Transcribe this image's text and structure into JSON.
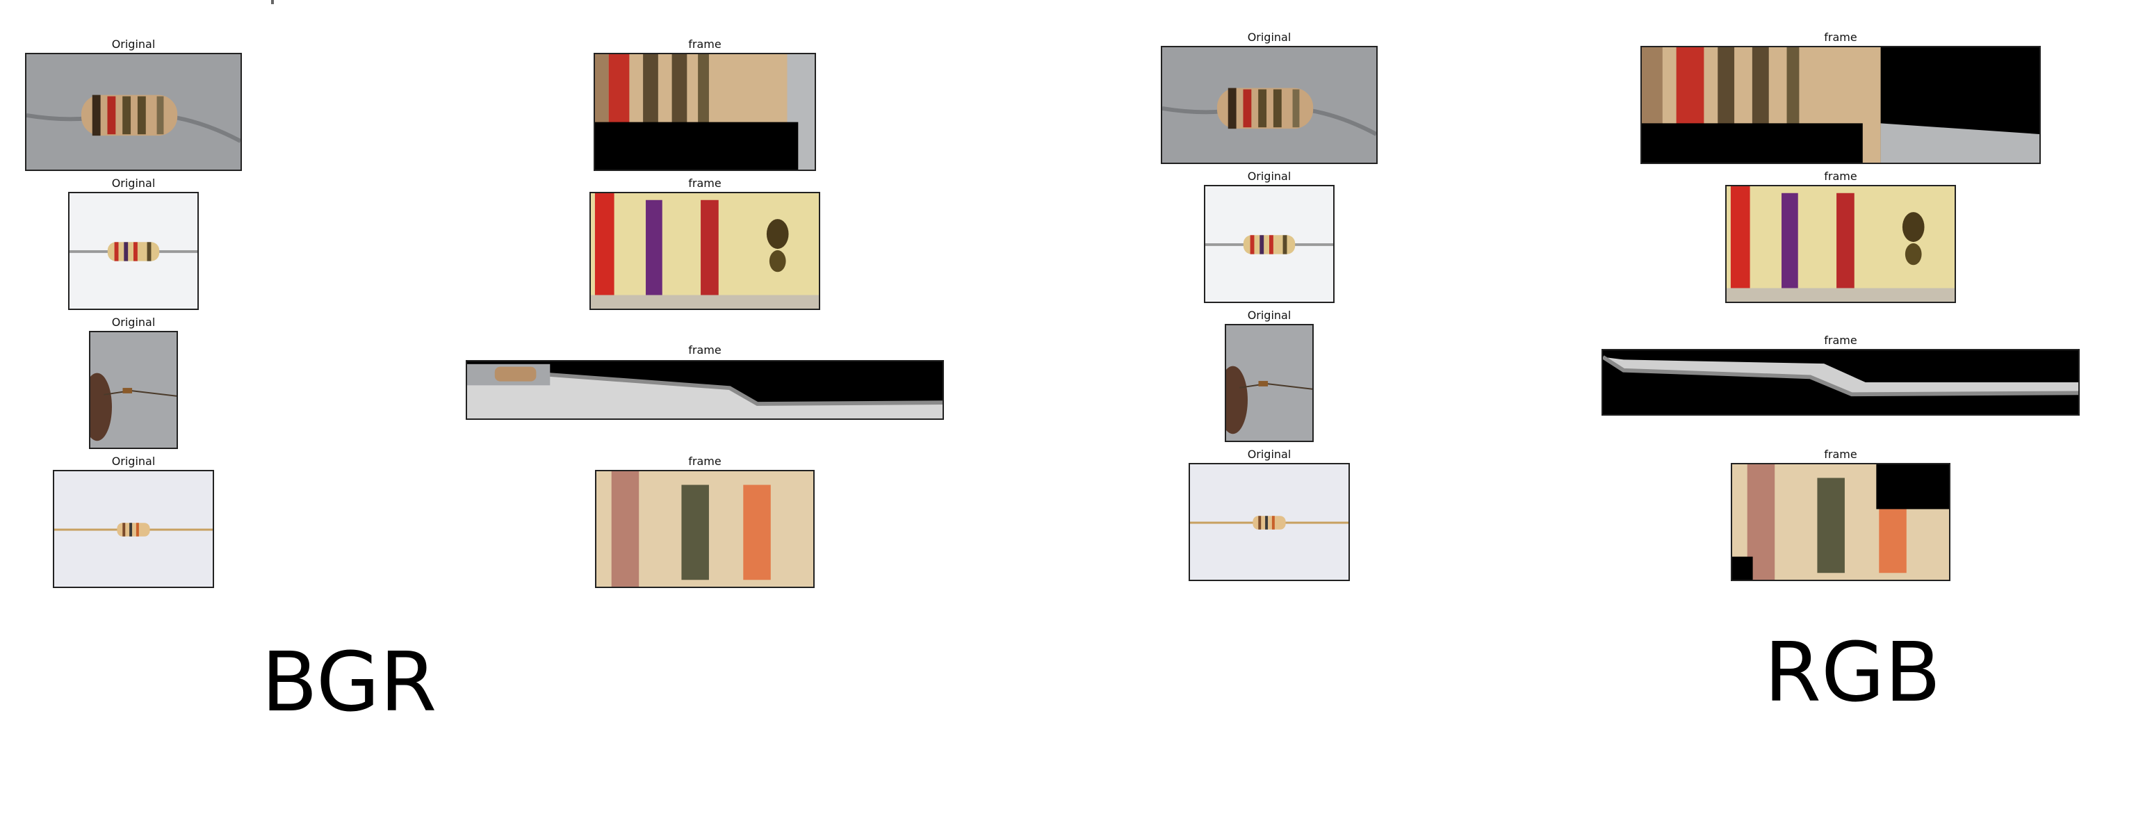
{
  "left_group": {
    "label": "BGR",
    "rows": [
      {
        "original_caption": "Original",
        "frame_caption": "frame"
      },
      {
        "original_caption": "Original",
        "frame_caption": "frame"
      },
      {
        "original_caption": "Original",
        "frame_caption": "frame"
      },
      {
        "original_caption": "Original",
        "frame_caption": "frame"
      }
    ]
  },
  "right_group": {
    "label": "RGB",
    "rows": [
      {
        "original_caption": "Original",
        "frame_caption": "frame"
      },
      {
        "original_caption": "Original",
        "frame_caption": "frame"
      },
      {
        "original_caption": "Original",
        "frame_caption": "frame"
      },
      {
        "original_caption": "Original",
        "frame_caption": "frame"
      }
    ]
  },
  "colors": {
    "background": "#ffffff",
    "band_red": "#c8302a",
    "band_brown": "#6a4a2a",
    "resistor_body": "#d9b98a",
    "mask_black": "#000000"
  }
}
